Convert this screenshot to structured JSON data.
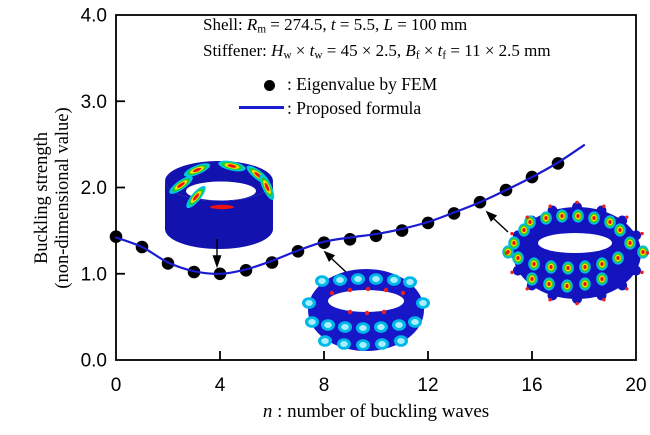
{
  "header": {
    "shell_text": "Shell: Rm = 274.5, t = 5.5, L = 100 mm",
    "stiffener_text": "Stiffener: Hw × tw = 45 × 2.5, Bf × tf = 11 × 2.5 mm",
    "shell_line_segments": [
      {
        "t": "Shell: "
      },
      {
        "t": "R",
        "i": 1
      },
      {
        "t": "m",
        "sub": 1
      },
      {
        "t": " = 274.5, "
      },
      {
        "t": "t",
        "i": 1
      },
      {
        "t": " = 5.5, "
      },
      {
        "t": "L",
        "i": 1
      },
      {
        "t": " = 100 mm"
      }
    ],
    "stiffener_line_segments": [
      {
        "t": "Stiffener: "
      },
      {
        "t": "H",
        "i": 1
      },
      {
        "t": "w",
        "sub": 1
      },
      {
        "t": " × "
      },
      {
        "t": "t",
        "i": 1
      },
      {
        "t": "w",
        "sub": 1
      },
      {
        "t": " = 45 × 2.5, "
      },
      {
        "t": "B",
        "i": 1
      },
      {
        "t": "f",
        "sub": 1
      },
      {
        "t": " × "
      },
      {
        "t": "t",
        "i": 1
      },
      {
        "t": "f",
        "sub": 1
      },
      {
        "t": " = 11 × 2.5 mm"
      }
    ]
  },
  "legend": {
    "fem_label": ": Eigenvalue by FEM",
    "formula_label": ": Proposed formula"
  },
  "axis": {
    "y_title_line1": "Buckling strength",
    "y_title_line2": "(non-dimensional value)",
    "x_title_segments": [
      {
        "t": "n",
        "i": 1
      },
      {
        "t": " : number of buckling waves"
      }
    ]
  },
  "chart_data": {
    "type": "line+scatter",
    "title": "",
    "xlabel": "n : number of buckling waves",
    "ylabel": "Buckling strength (non-dimensional value)",
    "xlim": [
      0,
      20
    ],
    "ylim": [
      0.0,
      4.0
    ],
    "x_ticks": [
      0,
      4,
      8,
      12,
      16,
      20
    ],
    "y_ticks": [
      0,
      1,
      2,
      3,
      4
    ],
    "grid": false,
    "legend_position": "top-inside",
    "colors": {
      "formula_line": "#1b1bd0",
      "fem_marker": "#000000",
      "frame": "#000000"
    },
    "series": [
      {
        "name": "Eigenvalue by FEM",
        "type": "scatter",
        "color": "#000000",
        "x": [
          0,
          1,
          2,
          3,
          4,
          5,
          6,
          7,
          8,
          9,
          10,
          11,
          12,
          13,
          14,
          15,
          16,
          17
        ],
        "y": [
          1.43,
          1.31,
          1.12,
          1.02,
          1.0,
          1.04,
          1.13,
          1.26,
          1.36,
          1.4,
          1.44,
          1.5,
          1.59,
          1.7,
          1.83,
          1.97,
          2.12,
          2.28
        ]
      },
      {
        "name": "Proposed formula",
        "type": "line",
        "color": "#1b1bd0",
        "x": [
          0,
          1,
          2,
          3,
          4,
          5,
          6,
          7,
          8,
          9,
          10,
          11,
          12,
          13,
          14,
          15,
          16,
          17,
          18
        ],
        "y": [
          1.42,
          1.31,
          1.13,
          1.03,
          1.0,
          1.05,
          1.15,
          1.27,
          1.37,
          1.42,
          1.46,
          1.52,
          1.6,
          1.71,
          1.83,
          1.97,
          2.12,
          2.29,
          2.49
        ]
      }
    ],
    "annotations": [
      {
        "name": "mode-shape-inset-low",
        "description": "FEM buckling mode shape, few waves",
        "points_to_n": 4
      },
      {
        "name": "mode-shape-inset-mid",
        "description": "FEM buckling mode shape, medium waves",
        "points_to_n": 8
      },
      {
        "name": "mode-shape-inset-high",
        "description": "FEM buckling mode shape, many waves",
        "points_to_n": 14
      }
    ]
  }
}
